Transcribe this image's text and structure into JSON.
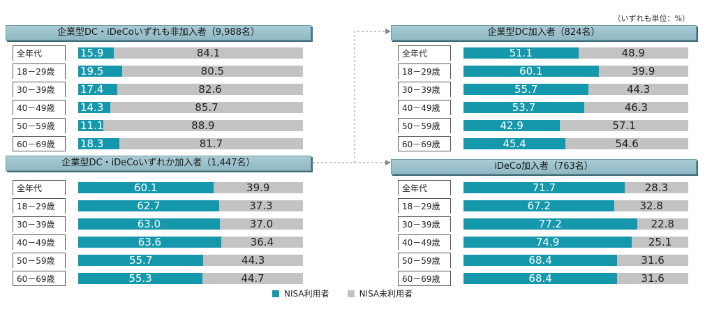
{
  "unit_note": "（いずれも単位：%）",
  "legend": {
    "nisa_user": "NISA利用者",
    "nisa_nonuser": "NISA未利用者",
    "nisa_user_color": "#1698ac",
    "nisa_nonuser_color": "#c3c3c3"
  },
  "chart_data": [
    {
      "type": "bar",
      "title": "企業型DC・iDeCoいずれも非加入者（9,988名）",
      "categories": [
        "全年代",
        "18－29歳",
        "30－39歳",
        "40－49歳",
        "50－59歳",
        "60－69歳"
      ],
      "series": [
        {
          "name": "NISA利用者",
          "values": [
            15.9,
            19.5,
            17.4,
            14.3,
            11.1,
            18.3
          ]
        },
        {
          "name": "NISA未利用者",
          "values": [
            84.1,
            80.5,
            82.6,
            85.7,
            88.9,
            81.7
          ]
        }
      ],
      "xlim": [
        0,
        100
      ]
    },
    {
      "type": "bar",
      "title": "企業型DC・iDeCoいずれか加入者（1,447名）",
      "categories": [
        "全年代",
        "18－29歳",
        "30－39歳",
        "40－49歳",
        "50－59歳",
        "60－69歳"
      ],
      "series": [
        {
          "name": "NISA利用者",
          "values": [
            60.1,
            62.7,
            63.0,
            63.6,
            55.7,
            55.3
          ]
        },
        {
          "name": "NISA未利用者",
          "values": [
            39.9,
            37.3,
            37.0,
            36.4,
            44.3,
            44.7
          ]
        }
      ],
      "xlim": [
        0,
        100
      ]
    },
    {
      "type": "bar",
      "title": "企業型DC加入者（824名）",
      "categories": [
        "全年代",
        "18－29歳",
        "30－39歳",
        "40－49歳",
        "50－59歳",
        "60－69歳"
      ],
      "series": [
        {
          "name": "NISA利用者",
          "values": [
            51.1,
            60.1,
            55.7,
            53.7,
            42.9,
            45.4
          ]
        },
        {
          "name": "NISA未利用者",
          "values": [
            48.9,
            39.9,
            44.3,
            46.3,
            57.1,
            54.6
          ]
        }
      ],
      "xlim": [
        0,
        100
      ]
    },
    {
      "type": "bar",
      "title": "iDeCo加入者（763名）",
      "categories": [
        "全年代",
        "18－29歳",
        "30－39歳",
        "40－49歳",
        "50－59歳",
        "60－69歳"
      ],
      "series": [
        {
          "name": "NISA利用者",
          "values": [
            71.7,
            67.2,
            77.2,
            74.9,
            68.4,
            68.4
          ]
        },
        {
          "name": "NISA未利用者",
          "values": [
            28.3,
            32.8,
            22.8,
            25.1,
            31.6,
            31.6
          ]
        }
      ],
      "xlim": [
        0,
        100
      ]
    }
  ]
}
